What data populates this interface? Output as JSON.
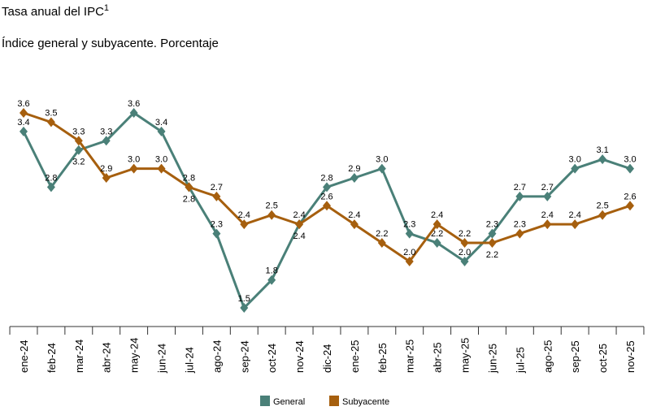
{
  "title": "Tasa anual del IPC",
  "title_sup": "1",
  "subtitle": "Índice general y subyacente. Porcentaje",
  "chart_data": {
    "type": "line",
    "categories": [
      "ene-24",
      "feb-24",
      "mar-24",
      "abr-24",
      "may-24",
      "jun-24",
      "jul-24",
      "ago-24",
      "sep-24",
      "oct-24",
      "nov-24",
      "dic-24",
      "ene-25",
      "feb-25",
      "mar-25",
      "abr-25",
      "may-25",
      "jun-25",
      "jul-25",
      "ago-25",
      "sep-25",
      "oct-25",
      "nov-25"
    ],
    "series": [
      {
        "name": "General",
        "color": "#4a8078",
        "marker": "diamond",
        "values": [
          3.4,
          2.8,
          3.2,
          3.3,
          3.6,
          3.4,
          2.8,
          2.3,
          1.5,
          1.8,
          2.4,
          2.8,
          2.9,
          3.0,
          2.3,
          2.2,
          2.0,
          2.3,
          2.7,
          2.7,
          3.0,
          3.1,
          3.0
        ]
      },
      {
        "name": "Subyacente",
        "color": "#a65f0e",
        "marker": "diamond",
        "values": [
          3.6,
          3.5,
          3.3,
          2.9,
          3.0,
          3.0,
          2.8,
          2.7,
          2.4,
          2.5,
          2.4,
          2.6,
          2.4,
          2.2,
          2.0,
          2.4,
          2.2,
          2.2,
          2.3,
          2.4,
          2.4,
          2.5,
          2.6
        ]
      }
    ],
    "data_labels": true,
    "grid": false,
    "legend": "bottom-center"
  }
}
